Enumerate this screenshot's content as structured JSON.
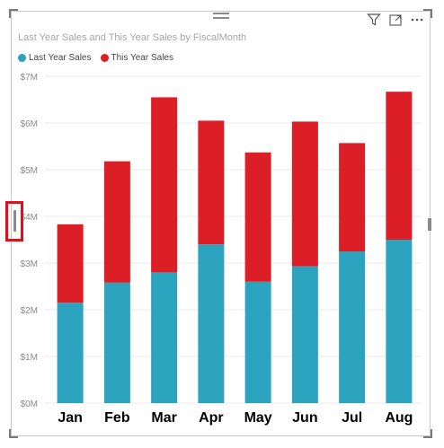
{
  "visual": {
    "title": "Last Year Sales and This Year Sales by FiscalMonth",
    "icons": {
      "filter": "filter-icon",
      "focus": "focus-mode-icon",
      "more": "more-options-icon"
    }
  },
  "legend": {
    "items": [
      {
        "label": "Last Year Sales",
        "color": "#2ca3bf"
      },
      {
        "label": "This Year Sales",
        "color": "#dc1f26"
      }
    ]
  },
  "chart_data": {
    "type": "bar",
    "stacked": true,
    "title": "Last Year Sales and This Year Sales by FiscalMonth",
    "categories": [
      "Jan",
      "Feb",
      "Mar",
      "Apr",
      "May",
      "Jun",
      "Jul",
      "Aug"
    ],
    "series": [
      {
        "name": "Last Year Sales",
        "color": "#2ca3bf",
        "values": [
          2.15,
          2.58,
          2.8,
          3.4,
          2.6,
          2.93,
          3.25,
          3.5
        ]
      },
      {
        "name": "This Year Sales",
        "color": "#dc1f26",
        "values": [
          1.68,
          2.6,
          3.75,
          2.65,
          2.77,
          3.1,
          2.32,
          3.17
        ]
      }
    ],
    "ylim": [
      0,
      7
    ],
    "yticks": [
      "$0M",
      "$1M",
      "$2M",
      "$3M",
      "$4M",
      "$5M",
      "$6M",
      "$7M"
    ],
    "grid": true,
    "legend_position": "top-left"
  }
}
